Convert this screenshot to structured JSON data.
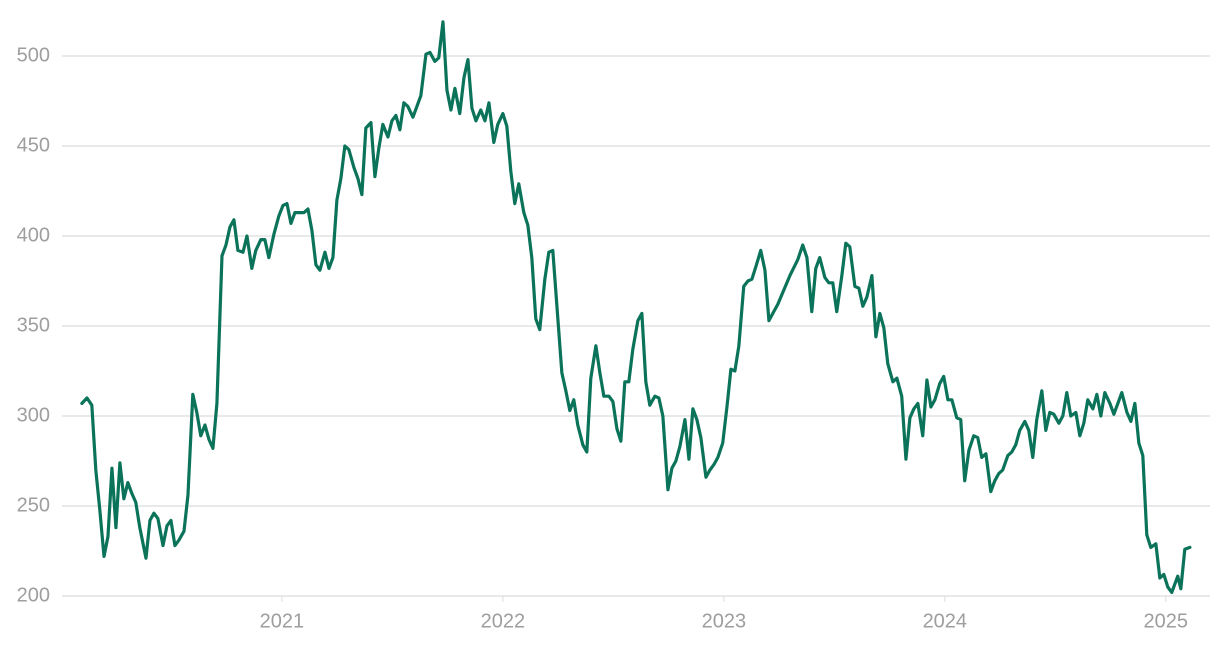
{
  "chart_data": {
    "type": "line",
    "x": [
      2020.095,
      2020.118,
      2020.14,
      2020.158,
      2020.176,
      2020.195,
      2020.213,
      2020.231,
      2020.249,
      2020.267,
      2020.285,
      2020.303,
      2020.321,
      2020.339,
      2020.357,
      2020.385,
      2020.403,
      2020.421,
      2020.439,
      2020.462,
      2020.48,
      2020.498,
      2020.516,
      2020.534,
      2020.557,
      2020.575,
      2020.597,
      2020.615,
      2020.633,
      2020.652,
      2020.67,
      2020.688,
      2020.706,
      2020.729,
      2020.747,
      2020.765,
      2020.783,
      2020.801,
      2020.824,
      2020.842,
      2020.864,
      2020.882,
      2020.905,
      2020.923,
      2020.941,
      2020.964,
      2020.986,
      2021.005,
      2021.023,
      2021.041,
      2021.059,
      2021.081,
      2021.1,
      2021.118,
      2021.136,
      2021.154,
      2021.172,
      2021.195,
      2021.213,
      2021.231,
      2021.249,
      2021.267,
      2021.285,
      2021.303,
      2021.326,
      2021.344,
      2021.362,
      2021.38,
      2021.403,
      2021.421,
      2021.439,
      2021.457,
      2021.48,
      2021.498,
      2021.516,
      2021.534,
      2021.552,
      2021.57,
      2021.593,
      2021.611,
      2021.629,
      2021.652,
      2021.67,
      2021.692,
      2021.71,
      2021.729,
      2021.747,
      2021.765,
      2021.783,
      2021.805,
      2021.824,
      2021.842,
      2021.86,
      2021.878,
      2021.9,
      2021.919,
      2021.937,
      2021.959,
      2021.977,
      2022.0,
      2022.018,
      2022.036,
      2022.054,
      2022.072,
      2022.095,
      2022.113,
      2022.131,
      2022.149,
      2022.167,
      2022.19,
      2022.208,
      2022.226,
      2022.244,
      2022.267,
      2022.285,
      2022.303,
      2022.321,
      2022.339,
      2022.362,
      2022.38,
      2022.398,
      2022.421,
      2022.439,
      2022.457,
      2022.48,
      2022.498,
      2022.516,
      2022.534,
      2022.552,
      2022.57,
      2022.588,
      2022.611,
      2022.629,
      2022.647,
      2022.665,
      2022.688,
      2022.706,
      2022.724,
      2022.747,
      2022.765,
      2022.783,
      2022.801,
      2022.824,
      2022.842,
      2022.86,
      2022.878,
      2022.896,
      2022.919,
      2022.937,
      2022.955,
      2022.973,
      2022.995,
      2023.014,
      2023.032,
      2023.05,
      2023.068,
      2023.09,
      2023.109,
      2023.127,
      2023.145,
      2023.167,
      2023.186,
      2023.204,
      2023.226,
      2023.244,
      2023.299,
      2023.335,
      2023.357,
      2023.376,
      2023.398,
      2023.416,
      2023.434,
      2023.457,
      2023.475,
      2023.493,
      2023.511,
      2023.534,
      2023.552,
      2023.57,
      2023.593,
      2023.611,
      2023.629,
      2023.647,
      2023.67,
      2023.688,
      2023.706,
      2023.724,
      2023.742,
      2023.765,
      2023.783,
      2023.805,
      2023.824,
      2023.842,
      2023.86,
      2023.878,
      2023.9,
      2023.919,
      2023.937,
      2023.955,
      2023.977,
      2023.995,
      2024.014,
      2024.032,
      2024.054,
      2024.072,
      2024.09,
      2024.109,
      2024.131,
      2024.149,
      2024.167,
      2024.186,
      2024.208,
      2024.226,
      2024.244,
      2024.262,
      2024.285,
      2024.303,
      2024.321,
      2024.339,
      2024.362,
      2024.38,
      2024.398,
      2024.416,
      2024.439,
      2024.457,
      2024.475,
      2024.493,
      2024.516,
      2024.534,
      2024.552,
      2024.57,
      2024.593,
      2024.611,
      2024.629,
      2024.647,
      2024.67,
      2024.688,
      2024.706,
      2024.724,
      2024.747,
      2024.765,
      2024.783,
      2024.801,
      2024.824,
      2024.842,
      2024.86,
      2024.878,
      2024.896,
      2024.914,
      2024.932,
      2024.955,
      2024.973,
      2024.991,
      2025.009,
      2025.027,
      2025.054,
      2025.068,
      2025.086,
      2025.109
    ],
    "values": [
      307,
      310,
      306,
      270,
      248,
      222,
      233,
      271,
      238,
      274,
      254,
      263,
      257,
      252,
      238,
      221,
      242,
      246,
      243,
      228,
      239,
      242,
      228,
      231,
      236,
      256,
      312,
      302,
      289,
      295,
      287,
      282,
      307,
      389,
      395,
      405,
      409,
      392,
      391,
      400,
      382,
      392,
      398,
      398,
      388,
      401,
      411,
      417,
      418,
      407,
      413,
      413,
      413,
      415,
      403,
      384,
      381,
      391,
      382,
      388,
      420,
      432,
      450,
      448,
      438,
      432,
      423,
      460,
      463,
      433,
      449,
      462,
      455,
      464,
      467,
      459,
      474,
      472,
      466,
      472,
      478,
      501,
      502,
      497,
      499,
      519,
      481,
      470,
      482,
      468,
      488,
      498,
      471,
      464,
      470,
      464,
      474,
      452,
      462,
      468,
      461,
      436,
      418,
      429,
      413,
      406,
      388,
      354,
      348,
      376,
      391,
      392,
      362,
      324,
      314,
      303,
      309,
      295,
      284,
      280,
      321,
      339,
      324,
      311,
      311,
      308,
      293,
      286,
      319,
      319,
      337,
      353,
      357,
      319,
      306,
      311,
      310,
      300,
      259,
      271,
      275,
      283,
      298,
      276,
      304,
      298,
      288,
      266,
      270,
      273,
      277,
      285,
      305,
      326,
      325,
      339,
      372,
      375,
      376,
      383,
      392,
      381,
      353,
      358,
      362,
      378,
      387,
      395,
      388,
      358,
      382,
      388,
      377,
      374,
      374,
      358,
      378,
      396,
      394,
      372,
      371,
      361,
      366,
      378,
      344,
      357,
      349,
      329,
      319,
      321,
      311,
      276,
      299,
      304,
      307,
      289,
      320,
      305,
      309,
      318,
      322,
      309,
      309,
      299,
      298,
      264,
      281,
      289,
      288,
      277,
      279,
      258,
      264,
      268,
      270,
      278,
      280,
      284,
      292,
      297,
      292,
      277,
      298,
      314,
      292,
      302,
      301,
      296,
      300,
      313,
      300,
      302,
      289,
      296,
      309,
      304,
      312,
      300,
      313,
      307,
      301,
      307,
      313,
      302,
      297,
      307,
      285,
      278,
      234,
      227,
      229,
      210,
      212,
      205,
      202,
      211,
      204,
      226,
      227
    ],
    "color": "#0b7359",
    "xlim": [
      2020.005,
      2025.2
    ],
    "xticks": [
      2021,
      2022,
      2023,
      2024,
      2025
    ],
    "ylim": [
      200,
      520
    ],
    "yticks": [
      200,
      250,
      300,
      350,
      400,
      450,
      500
    ],
    "grid": true
  }
}
